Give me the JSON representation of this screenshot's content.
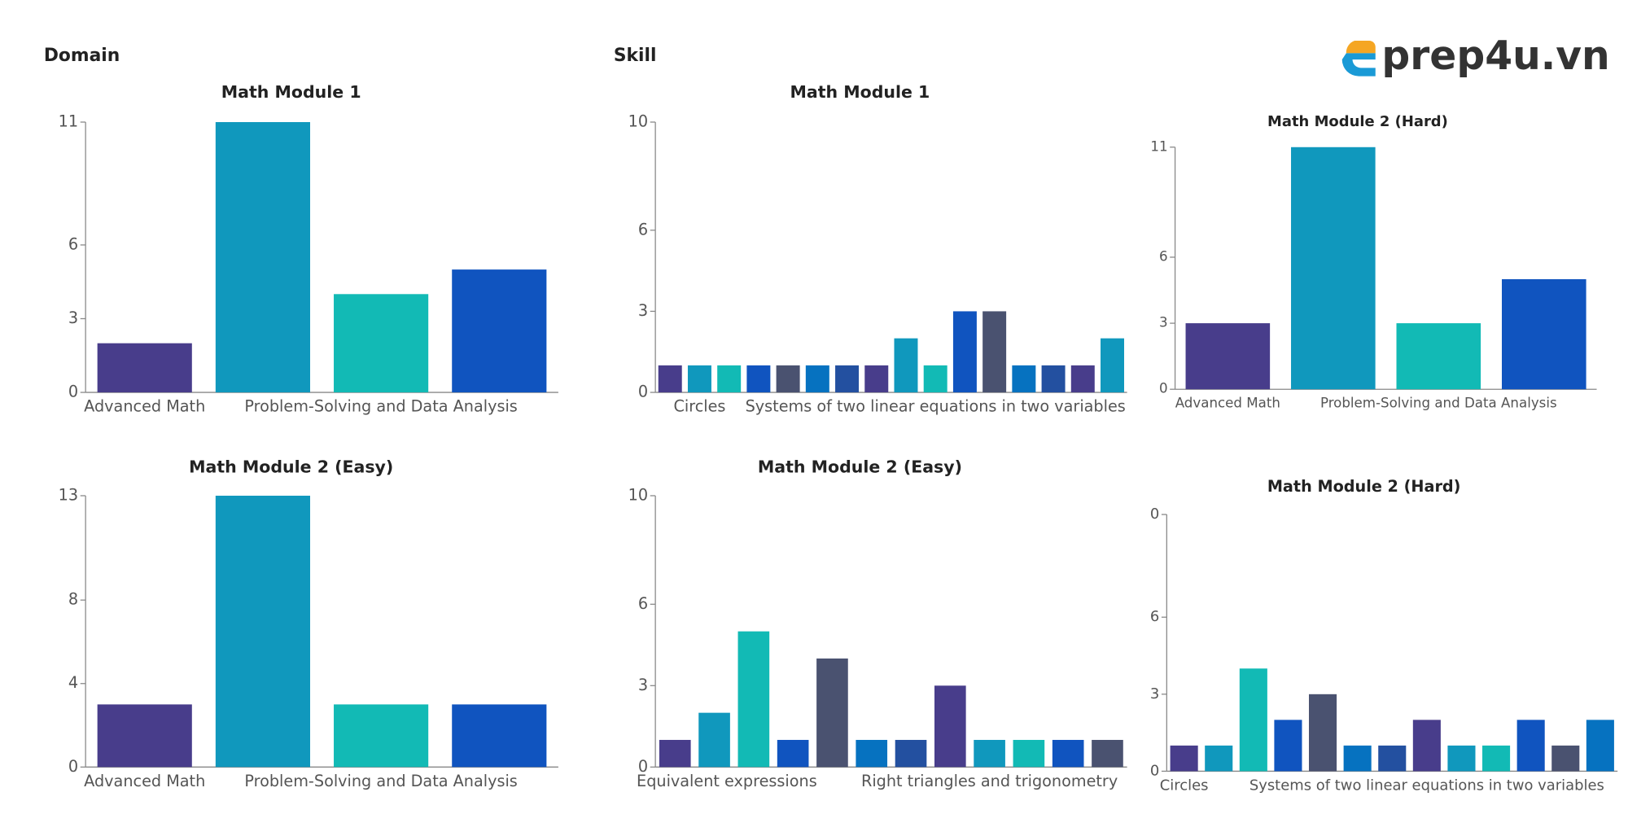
{
  "headings": [
    "Domain",
    "Skill"
  ],
  "logo": "prep4u.vn",
  "chart_data": [
    {
      "type": "bar",
      "title": "Math Module 1",
      "categories": [
        "Advanced Math",
        null,
        "Problem-Solving and Data Analysis",
        null
      ],
      "values": [
        2,
        11,
        4,
        5
      ],
      "colors": [
        "#483d8b",
        "#1098bd",
        "#12bab5",
        "#1054bf"
      ],
      "ylim": [
        0,
        11
      ],
      "yticks": [
        0,
        3,
        6,
        11
      ],
      "grid": false
    },
    {
      "type": "bar",
      "title": "Math Module 1",
      "categories": [
        null,
        "Circles",
        null,
        null,
        null,
        null,
        null,
        null,
        null,
        "Systems of two linear equations in two variables",
        null,
        null,
        null,
        null,
        null,
        null
      ],
      "values": [
        1,
        1,
        1,
        1,
        1,
        1,
        1,
        1,
        2,
        1,
        3,
        3,
        1,
        1,
        1,
        2
      ],
      "colors": [
        "#483d8b",
        "#1098bd",
        "#12bab5",
        "#1054bf",
        "#4a5270",
        "#0672c0",
        "#2350a0"
      ],
      "ylim": [
        0,
        10
      ],
      "yticks": [
        0,
        3,
        6,
        10
      ],
      "grid": false
    },
    {
      "type": "bar",
      "title": "Math Module 2 (Hard)",
      "categories": [
        "Advanced Math",
        null,
        "Problem-Solving and Data Analysis",
        null
      ],
      "values": [
        3,
        11,
        3,
        5
      ],
      "colors": [
        "#483d8b",
        "#1098bd",
        "#12bab5",
        "#1054bf"
      ],
      "ylim": [
        0,
        11
      ],
      "yticks": [
        0,
        3,
        6,
        11
      ],
      "grid": false
    },
    {
      "type": "bar",
      "title": "Math Module 2 (Easy)",
      "categories": [
        "Advanced Math",
        null,
        "Problem-Solving and Data Analysis",
        null
      ],
      "values": [
        3,
        13,
        3,
        3
      ],
      "colors": [
        "#483d8b",
        "#1098bd",
        "#12bab5",
        "#1054bf"
      ],
      "ylim": [
        0,
        13
      ],
      "yticks": [
        0,
        4,
        8,
        13
      ],
      "grid": false
    },
    {
      "type": "bar",
      "title": "Math Module 2 (Easy)",
      "categories": [
        null,
        "Equivalent expressions",
        null,
        null,
        null,
        null,
        null,
        null,
        "Right triangles and trigonometry",
        null,
        null,
        null
      ],
      "values": [
        1,
        2,
        5,
        1,
        4,
        1,
        1,
        3,
        1,
        1,
        1,
        1
      ],
      "colors": [
        "#483d8b",
        "#1098bd",
        "#12bab5",
        "#1054bf",
        "#4a5270",
        "#0672c0",
        "#2350a0"
      ],
      "ylim": [
        0,
        10
      ],
      "yticks": [
        0,
        3,
        6,
        10
      ],
      "grid": false
    },
    {
      "type": "bar",
      "title": "Math Module 2 (Hard)",
      "categories": [
        "Circles",
        null,
        null,
        null,
        null,
        null,
        null,
        "Systems of two linear equations in two variables",
        null,
        null,
        null,
        null,
        null
      ],
      "values": [
        1,
        1,
        4,
        2,
        3,
        1,
        1,
        2,
        1,
        1,
        2,
        1,
        2
      ],
      "colors": [
        "#483d8b",
        "#1098bd",
        "#12bab5",
        "#1054bf",
        "#4a5270",
        "#0672c0",
        "#2350a0"
      ],
      "ylim": [
        0,
        10
      ],
      "yticks": [
        0,
        3,
        6,
        {
          "value": 10,
          "label": "0"
        }
      ],
      "grid": false
    }
  ]
}
